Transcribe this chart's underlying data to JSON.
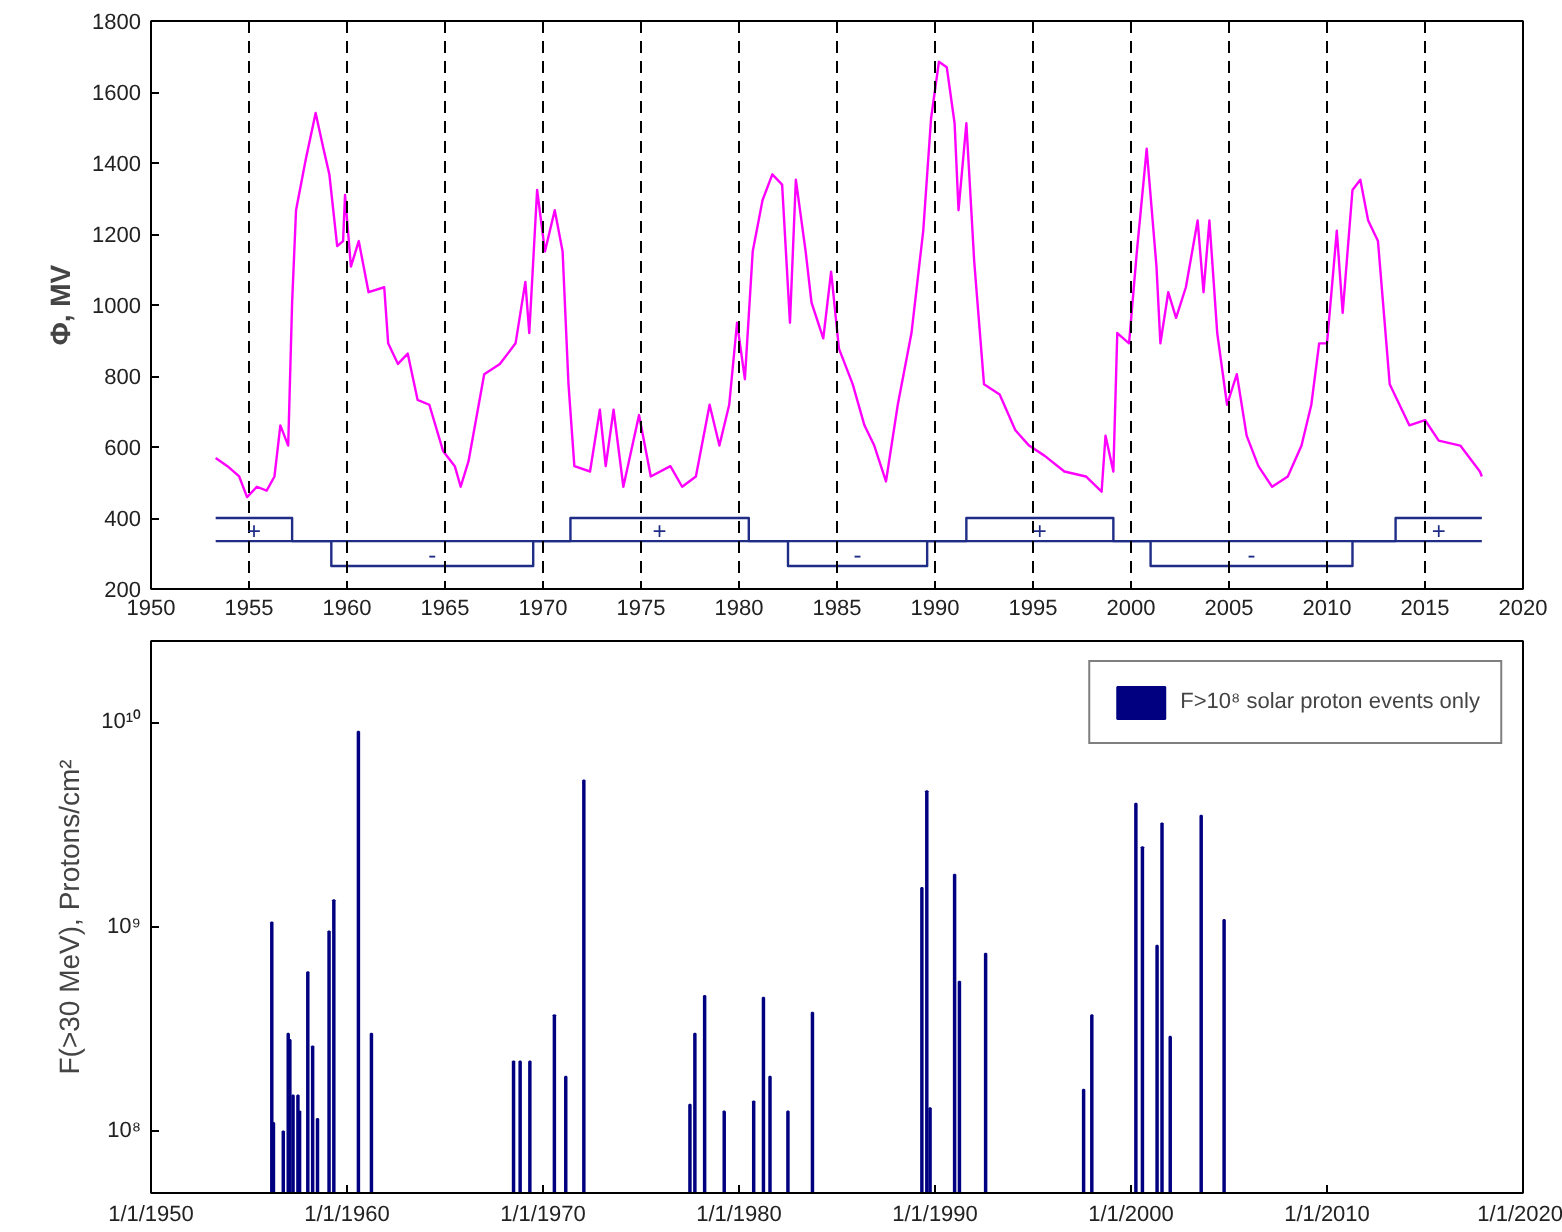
{
  "chart_data": [
    {
      "type": "line",
      "ylabel": "Φ, MV",
      "xlim": [
        1950,
        2020
      ],
      "ylim": [
        200,
        1800
      ],
      "xticks": [
        1950,
        1955,
        1960,
        1965,
        1970,
        1975,
        1980,
        1985,
        1990,
        1995,
        2000,
        2005,
        2010,
        2015,
        2020
      ],
      "yticks": [
        200,
        400,
        600,
        800,
        1000,
        1200,
        1400,
        1600,
        1800
      ],
      "grid": false,
      "legend": false,
      "marker": "none",
      "series": [
        {
          "color": "#ff00ff",
          "x": [
            1953.3,
            1953.9,
            1954.5,
            1954.9,
            1955.4,
            1955.9,
            1956.3,
            1956.6,
            1957.0,
            1957.2,
            1957.4,
            1957.9,
            1958.4,
            1958.8,
            1959.1,
            1959.5,
            1959.8,
            1959.9,
            1960.2,
            1960.6,
            1961.1,
            1961.9,
            1962.1,
            1962.6,
            1963.1,
            1963.6,
            1964.2,
            1964.9,
            1965.5,
            1965.8,
            1966.2,
            1967.0,
            1967.8,
            1968.6,
            1969.1,
            1969.3,
            1969.7,
            1970.1,
            1970.6,
            1971.0,
            1971.3,
            1971.6,
            1972.4,
            1972.9,
            1973.2,
            1973.6,
            1974.1,
            1974.9,
            1975.5,
            1976.5,
            1977.1,
            1977.8,
            1978.5,
            1979.0,
            1979.5,
            1979.9,
            1980.3,
            1980.7,
            1981.2,
            1981.7,
            1982.2,
            1982.6,
            1982.9,
            1983.4,
            1983.7,
            1984.3,
            1984.7,
            1985.1,
            1985.8,
            1986.4,
            1986.9,
            1987.5,
            1988.1,
            1988.8,
            1989.4,
            1989.8,
            1990.2,
            1990.6,
            1991.0,
            1991.2,
            1991.6,
            1992.0,
            1992.5,
            1993.3,
            1994.1,
            1994.8,
            1995.6,
            1996.6,
            1997.7,
            1998.5,
            1998.7,
            1999.1,
            1999.3,
            1999.9,
            2000.3,
            2000.8,
            2001.3,
            2001.5,
            2001.9,
            2002.3,
            2002.8,
            2003.4,
            2003.7,
            2004.0,
            2004.4,
            2004.9,
            2005.4,
            2005.9,
            2006.5,
            2007.2,
            2008.0,
            2008.7,
            2009.2,
            2009.6,
            2010.0,
            2010.5,
            2010.8,
            2011.3,
            2011.7,
            2012.1,
            2012.6,
            2013.2,
            2013.7,
            2014.2,
            2015.0,
            2015.7,
            2016.8,
            2017.8,
            2017.9
          ],
          "values": [
            569,
            546,
            517,
            459,
            488,
            477,
            517,
            661,
            604,
            1007,
            1267,
            1411,
            1541,
            1440,
            1368,
            1166,
            1180,
            1310,
            1108,
            1180,
            1036,
            1050,
            892,
            834,
            863,
            733,
            719,
            589,
            546,
            488,
            560,
            805,
            834,
            892,
            1065,
            921,
            1324,
            1151,
            1267,
            1151,
            777,
            546,
            531,
            705,
            546,
            705,
            488,
            690,
            517,
            546,
            488,
            517,
            719,
            604,
            719,
            950,
            791,
            1151,
            1295,
            1368,
            1339,
            950,
            1353,
            1151,
            1007,
            906,
            1094,
            877,
            777,
            661,
            604,
            503,
            719,
            921,
            1209,
            1526,
            1685,
            1670,
            1512,
            1267,
            1512,
            1123,
            777,
            748,
            647,
            604,
            575,
            531,
            517,
            474,
            632,
            531,
            921,
            892,
            1151,
            1440,
            1108,
            892,
            1036,
            964,
            1050,
            1238,
            1036,
            1238,
            921,
            719,
            805,
            632,
            546,
            488,
            517,
            604,
            719,
            892,
            892,
            1209,
            978,
            1324,
            1353,
            1238,
            1180,
            777,
            719,
            661,
            676,
            618,
            604,
            531,
            517
          ]
        },
        {
          "color": "#1f2d86",
          "x": [
            1953.3,
            1957.2,
            1957.2,
            1959.2,
            1959.2,
            1969.5,
            1969.5,
            1971.4,
            1971.4,
            1980.5,
            1980.5,
            1982.5,
            1982.5,
            1989.6,
            1989.6,
            1991.6,
            1991.6,
            1999.1,
            1999.1,
            2001.0,
            2001.0,
            2011.3,
            2011.3,
            2013.5,
            2013.5,
            2017.9
          ],
          "values": [
            400,
            400,
            335,
            335,
            265,
            265,
            335,
            335,
            400,
            400,
            335,
            335,
            265,
            265,
            335,
            335,
            400,
            400,
            335,
            335,
            265,
            265,
            335,
            335,
            400,
            400
          ]
        },
        {
          "color": "#1f2d86",
          "x": [
            1953.3,
            2017.9
          ],
          "values": [
            335,
            335
          ]
        }
      ],
      "ref_lines": [
        {
          "axis": "x",
          "value": 1955,
          "color": "#000000",
          "line_style": "dashed"
        },
        {
          "axis": "x",
          "value": 1960,
          "color": "#000000",
          "line_style": "dashed"
        },
        {
          "axis": "x",
          "value": 1965,
          "color": "#000000",
          "line_style": "dashed"
        },
        {
          "axis": "x",
          "value": 1970,
          "color": "#000000",
          "line_style": "dashed"
        },
        {
          "axis": "x",
          "value": 1975,
          "color": "#000000",
          "line_style": "dashed"
        },
        {
          "axis": "x",
          "value": 1980,
          "color": "#000000",
          "line_style": "dashed"
        },
        {
          "axis": "x",
          "value": 1985,
          "color": "#000000",
          "line_style": "dashed"
        },
        {
          "axis": "x",
          "value": 1990,
          "color": "#000000",
          "line_style": "dashed"
        },
        {
          "axis": "x",
          "value": 1995,
          "color": "#000000",
          "line_style": "dashed"
        },
        {
          "axis": "x",
          "value": 2000,
          "color": "#000000",
          "line_style": "dashed"
        },
        {
          "axis": "x",
          "value": 2005,
          "color": "#000000",
          "line_style": "dashed"
        },
        {
          "axis": "x",
          "value": 2010,
          "color": "#000000",
          "line_style": "dashed"
        },
        {
          "axis": "x",
          "value": 2015,
          "color": "#000000",
          "line_style": "dashed"
        }
      ],
      "annotations": [
        "+",
        "-",
        "+",
        "-",
        "+",
        "-",
        "+"
      ]
    },
    {
      "type": "bar",
      "ylabel": "F(>30 MeV), Protons/cm²",
      "log": "y",
      "xlim": [
        "1950-01-01",
        "2020-01-01"
      ],
      "ylim": [
        50000000,
        25000000000
      ],
      "xticks": [
        {
          "value": "1950-01-01",
          "label": "1/1/1950"
        },
        {
          "value": "1960-01-01",
          "label": "1/1/1960"
        },
        {
          "value": "1970-01-01",
          "label": "1/1/1970"
        },
        {
          "value": "1980-01-01",
          "label": "1/1/1980"
        },
        {
          "value": "1990-01-01",
          "label": "1/1/1990"
        },
        {
          "value": "2000-01-01",
          "label": "1/1/2000"
        },
        {
          "value": "2010-01-01",
          "label": "1/1/2010"
        },
        {
          "value": "2020-01-01",
          "label": "1/1/2020"
        }
      ],
      "yticks": [
        {
          "value": 100000000,
          "label": "10⁸"
        },
        {
          "value": 1000000000,
          "label": "10⁹"
        },
        {
          "value": 10000000000,
          "label": "10¹⁰"
        }
      ],
      "grid": false,
      "legend": "top right",
      "series": [
        {
          "name": "F>10⁸ solar proton events only",
          "color": "#000080",
          "x": [
            "1956-03",
            "1956-04",
            "1956-10",
            "1957-01",
            "1957-02",
            "1957-04",
            "1957-07",
            "1957-08",
            "1958-01",
            "1958-04",
            "1958-07",
            "1959-02",
            "1959-05",
            "1960-08",
            "1961-04",
            "1968-07",
            "1968-11",
            "1969-05",
            "1970-08",
            "1971-03",
            "1972-02",
            "1977-07",
            "1977-10",
            "1978-04",
            "1979-04",
            "1980-10",
            "1981-04",
            "1981-08",
            "1982-07",
            "1983-10",
            "1989-05",
            "1989-08",
            "1989-10",
            "1991-01",
            "1991-04",
            "1992-08",
            "1997-08",
            "1998-01",
            "2000-04",
            "2000-08",
            "2001-05",
            "2001-08",
            "2002-01",
            "2003-08",
            "2004-10"
          ],
          "values": [
            1050000000,
            110000000,
            100000000,
            300000000,
            280000000,
            150000000,
            150000000,
            125000000,
            600000000,
            260000000,
            115000000,
            950000000,
            1350000000,
            9000000000,
            300000000,
            220000000,
            220000000,
            220000000,
            370000000,
            185000000,
            5200000000,
            135000000,
            300000000,
            460000000,
            125000000,
            140000000,
            450000000,
            185000000,
            125000000,
            380000000,
            1550000000,
            4600000000,
            130000000,
            1800000000,
            540000000,
            740000000,
            160000000,
            370000000,
            4000000000,
            2450000000,
            810000000,
            3200000000,
            290000000,
            3500000000,
            1080000000
          ]
        }
      ]
    }
  ]
}
